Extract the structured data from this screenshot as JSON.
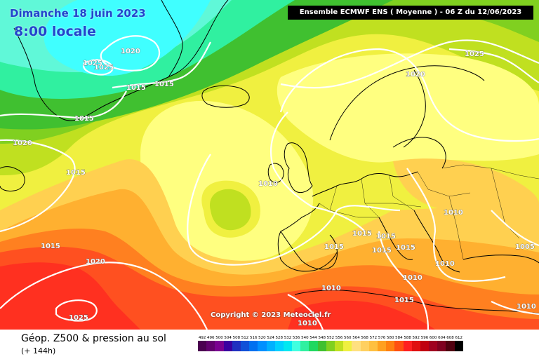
{
  "header": {
    "date_line": "Dimanche 18 juin 2023",
    "time_line": "8:00 locale",
    "run_info": "Ensemble ECMWF ENS  ( Moyenne )  -  06 Z du 12/06/2023"
  },
  "map": {
    "copyright": "Copyright © 2023 Meteociel.fr",
    "isobar_color": "#ffffff",
    "coast_color": "#000000",
    "pressure_labels": [
      "1020",
      "1025",
      "1025",
      "1015",
      "1015",
      "1015",
      "1020",
      "1015",
      "1010",
      "1015",
      "1020",
      "1025",
      "1025",
      "1020",
      "1010",
      "1015",
      "1015",
      "1015",
      "1015",
      "1015",
      "1010",
      "1005",
      "1010",
      "1010",
      "1015",
      "1010",
      "1010"
    ]
  },
  "footer": {
    "title": "Géop. Z500 & pression au sol",
    "subtitle": "(+ 144h)"
  },
  "scale": {
    "ticks": [
      "492",
      "496",
      "500",
      "504",
      "508",
      "512",
      "516",
      "520",
      "524",
      "528",
      "532",
      "536",
      "540",
      "544",
      "548",
      "552",
      "556",
      "560",
      "564",
      "568",
      "572",
      "576",
      "580",
      "584",
      "588",
      "592",
      "596",
      "600",
      "604",
      "608",
      "612"
    ],
    "colors": [
      "#4b0050",
      "#62006e",
      "#7a0090",
      "#3a00a0",
      "#2030c0",
      "#1050d8",
      "#0070f0",
      "#0090ff",
      "#00b0ff",
      "#00d0ff",
      "#00e8f0",
      "#40ffe0",
      "#30f0a0",
      "#20d860",
      "#40c030",
      "#80d020",
      "#c0e020",
      "#f0f040",
      "#ffe080",
      "#ffd060",
      "#ffc040",
      "#ffa020",
      "#ff8010",
      "#ff5010",
      "#ff2020",
      "#e01010",
      "#c00010",
      "#a00020",
      "#800020",
      "#500010",
      "#000000"
    ],
    "field_colors": {
      "z548": "#30f0a0",
      "z552": "#40c030",
      "z556": "#80d020",
      "z560": "#c0e020",
      "z564": "#f0f040",
      "z568": "#ffff80",
      "z572": "#ffd050",
      "z576": "#ffb030",
      "z580": "#ff8020",
      "z584": "#ff5020",
      "z588": "#ff3020"
    }
  }
}
